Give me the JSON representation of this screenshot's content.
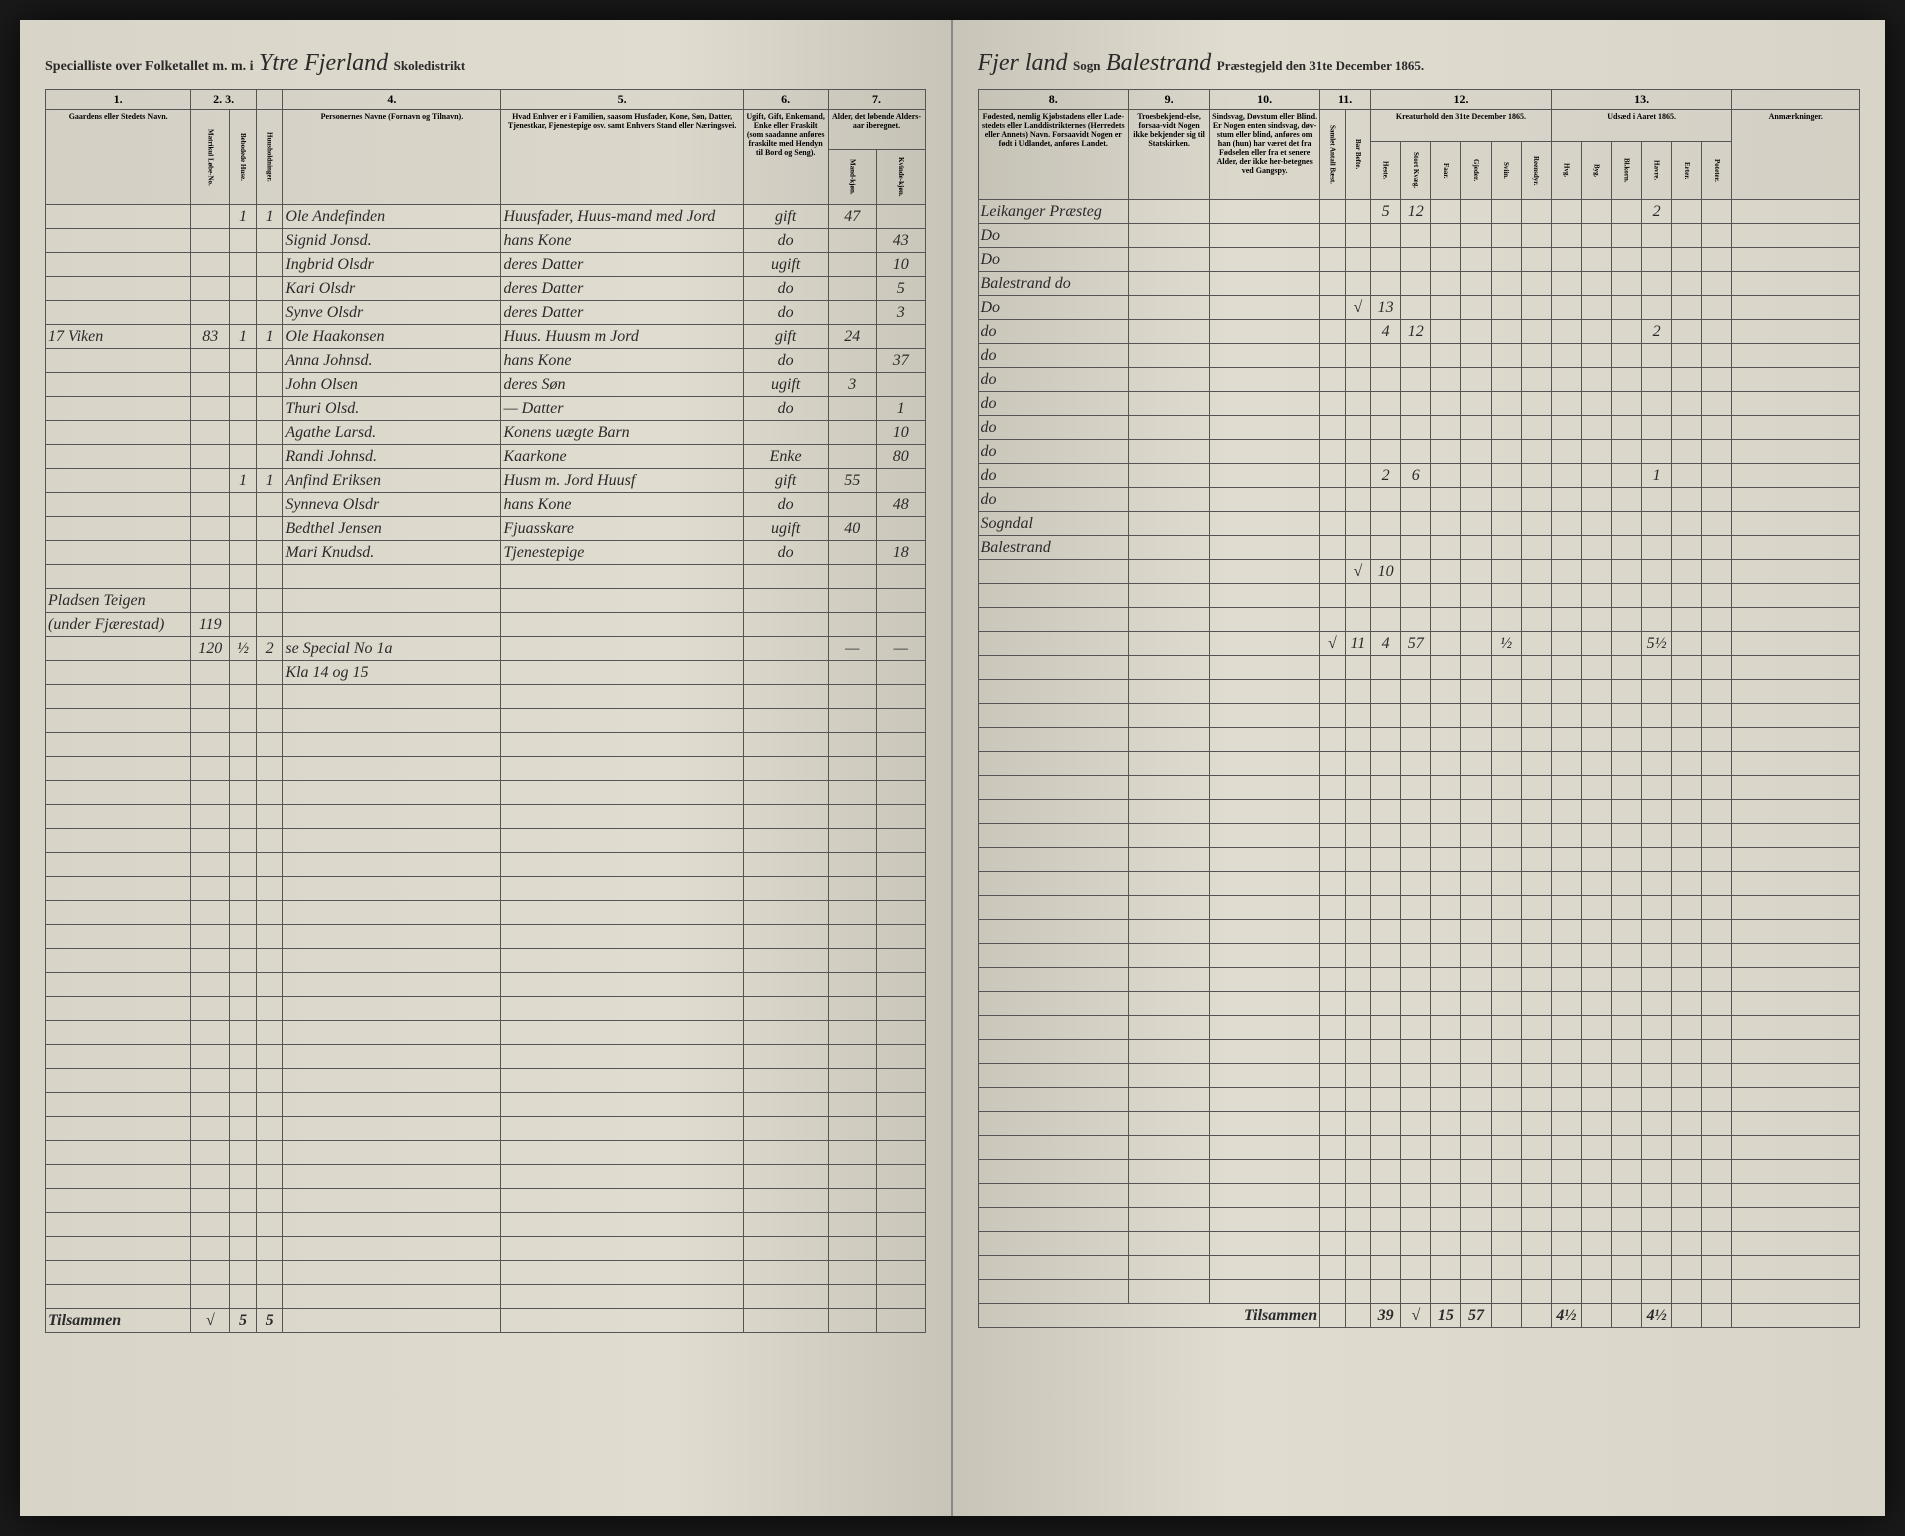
{
  "header_left": {
    "printed1": "Specialliste over Folketallet m. m. i",
    "script1": "Ytre Fjerland",
    "printed2": "Skoledistrikt"
  },
  "header_right": {
    "script1": "Fjer land",
    "printed1": "Sogn",
    "script2": "Balestrand",
    "printed2": "Præstegjeld den 31te December 1865."
  },
  "left_cols": {
    "c1": "1.",
    "c2": "2.",
    "c3": "3.",
    "c4": "4.",
    "c5": "5.",
    "c6": "6.",
    "c7": "7.",
    "h1": "Gaardens eller Stedets Navn.",
    "h2a": "Matrikul Løbe-No.",
    "h2b": "Bebodede Huse.",
    "h3": "Huusholdninger.",
    "h4": "Personernes Navne (Fornavn og Tilnavn).",
    "h5": "Hvad Enhver er i Familien, saasom Husfader, Kone, Søn, Datter, Tjenestkar, Fjenestepige osv. samt Enhvers Stand eller Næringsvei.",
    "h6": "Ugift, Gift, Enkemand, Enke eller Fraskilt (som saadanne anføres fraskilte med Hendyn til Bord og Seng).",
    "h7": "Alder, det løbende Alders-aar iberegnet.",
    "h7a": "Mand-kjøn.",
    "h7b": "Kvinde-kjøn."
  },
  "right_cols": {
    "c8": "8.",
    "c9": "9.",
    "c10": "10.",
    "c11": "11.",
    "c12": "12.",
    "c13": "13.",
    "h8": "Fødested, nemlig Kjøbstadens eller Lade-stedets eller Landdistrikternes (Herredets eller Annets) Navn. Forsaavidt Nogen er født i Udlandet, anføres Landet.",
    "h9": "Troesbekjend-else, forsaa-vidt Nogen ikke bekjender sig til Statskirken.",
    "h10": "Sindsvag, Døvstum eller Blind. Er Nogen enten sindsvag, døv-stum eller blind, anføres om han (hun) har været det fra Fødselen eller fra et senere Alder, der ikke her-betegnes ved Gangspy.",
    "h11a": "Samlet Antall Bæst.",
    "h11b": "Bar Befte.",
    "h12": "Kreaturhold den 31te December 1865.",
    "h12a": "Heste.",
    "h12b": "Stort Kvæg.",
    "h12c": "Faar.",
    "h12d": "Gjeder.",
    "h12e": "Sviin.",
    "h12f": "Reensdyr.",
    "h13": "Udsæd i Aaret 1865.",
    "h13a": "Hvg.",
    "h13b": "Byg.",
    "h13c": "Bl.korn.",
    "h13d": "Havre.",
    "h13e": "Erter.",
    "h13f": "Poteter.",
    "h14": "Anmærkninger."
  },
  "rows": [
    {
      "c1": "",
      "c2": "",
      "c3": "1",
      "c3b": "1",
      "c4": "Ole Andefinden",
      "c5": "Huusfader, Huus-mand med Jord",
      "c6": "gift",
      "c7a": "47",
      "c7b": "",
      "c8": "Leikanger Præsteg",
      "c12": [
        "",
        "",
        "5",
        "12",
        "",
        "",
        "",
        "",
        "",
        "",
        "",
        "2"
      ]
    },
    {
      "c1": "",
      "c2": "",
      "c3": "",
      "c3b": "",
      "c4": "Signid Jonsd.",
      "c5": "hans Kone",
      "c6": "do",
      "c7a": "",
      "c7b": "43",
      "c8": "Do",
      "c12": [
        "",
        "",
        "",
        "",
        "",
        "",
        "",
        "",
        "",
        "",
        "",
        ""
      ]
    },
    {
      "c1": "",
      "c2": "",
      "c3": "",
      "c3b": "",
      "c4": "Ingbrid Olsdr",
      "c5": "deres Datter",
      "c6": "ugift",
      "c7a": "",
      "c7b": "10",
      "c8": "Do",
      "c12": [
        "",
        "",
        "",
        "",
        "",
        "",
        "",
        "",
        "",
        "",
        "",
        ""
      ]
    },
    {
      "c1": "",
      "c2": "",
      "c3": "",
      "c3b": "",
      "c4": "Kari Olsdr",
      "c5": "deres Datter",
      "c6": "do",
      "c7a": "",
      "c7b": "5",
      "c8": "Balestrand do",
      "c12": [
        "",
        "",
        "",
        "",
        "",
        "",
        "",
        "",
        "",
        "",
        "",
        ""
      ]
    },
    {
      "c1": "",
      "c2": "",
      "c3": "",
      "c3b": "",
      "c4": "Synve Olsdr",
      "c5": "deres Datter",
      "c6": "do",
      "c7a": "",
      "c7b": "3",
      "c8": "Do",
      "c12": [
        "",
        "√",
        "13",
        "",
        "",
        "",
        "",
        "",
        "",
        "",
        "",
        ""
      ]
    },
    {
      "c1": "17 Viken",
      "c2": "83",
      "c3": "1",
      "c3b": "1",
      "c4": "Ole Haakonsen",
      "c5": "Huus. Huusm m Jord",
      "c6": "gift",
      "c7a": "24",
      "c7b": "",
      "c8": "do",
      "c12": [
        "",
        "",
        "4",
        "12",
        "",
        "",
        "",
        "",
        "",
        "",
        "",
        "2"
      ]
    },
    {
      "c1": "",
      "c2": "",
      "c3": "",
      "c3b": "",
      "c4": "Anna Johnsd.",
      "c5": "hans Kone",
      "c6": "do",
      "c7a": "",
      "c7b": "37",
      "c8": "do",
      "c12": [
        "",
        "",
        "",
        "",
        "",
        "",
        "",
        "",
        "",
        "",
        "",
        ""
      ]
    },
    {
      "c1": "",
      "c2": "",
      "c3": "",
      "c3b": "",
      "c4": "John Olsen",
      "c5": "deres Søn",
      "c6": "ugift",
      "c7a": "3",
      "c7b": "",
      "c8": "do",
      "c12": [
        "",
        "",
        "",
        "",
        "",
        "",
        "",
        "",
        "",
        "",
        "",
        ""
      ]
    },
    {
      "c1": "",
      "c2": "",
      "c3": "",
      "c3b": "",
      "c4": "Thuri Olsd.",
      "c5": "— Datter",
      "c6": "do",
      "c7a": "",
      "c7b": "1",
      "c8": "do",
      "c12": [
        "",
        "",
        "",
        "",
        "",
        "",
        "",
        "",
        "",
        "",
        "",
        ""
      ]
    },
    {
      "c1": "",
      "c2": "",
      "c3": "",
      "c3b": "",
      "c4": "Agathe Larsd.",
      "c5": "Konens uægte Barn",
      "c6": "",
      "c7a": "",
      "c7b": "10",
      "c8": "do",
      "c12": [
        "",
        "",
        "",
        "",
        "",
        "",
        "",
        "",
        "",
        "",
        "",
        ""
      ]
    },
    {
      "c1": "",
      "c2": "",
      "c3": "",
      "c3b": "",
      "c4": "Randi Johnsd.",
      "c5": "Kaarkone",
      "c6": "Enke",
      "c7a": "",
      "c7b": "80",
      "c8": "do",
      "c12": [
        "",
        "",
        "",
        "",
        "",
        "",
        "",
        "",
        "",
        "",
        "",
        ""
      ]
    },
    {
      "c1": "",
      "c2": "",
      "c3": "1",
      "c3b": "1",
      "c4": "Anfind Eriksen",
      "c5": "Husm m. Jord Huusf",
      "c6": "gift",
      "c7a": "55",
      "c7b": "",
      "c8": "do",
      "c12": [
        "",
        "",
        "2",
        "6",
        "",
        "",
        "",
        "",
        "",
        "",
        "",
        "1"
      ]
    },
    {
      "c1": "",
      "c2": "",
      "c3": "",
      "c3b": "",
      "c4": "Synneva Olsdr",
      "c5": "hans Kone",
      "c6": "do",
      "c7a": "",
      "c7b": "48",
      "c8": "do",
      "c12": [
        "",
        "",
        "",
        "",
        "",
        "",
        "",
        "",
        "",
        "",
        "",
        ""
      ]
    },
    {
      "c1": "",
      "c2": "",
      "c3": "",
      "c3b": "",
      "c4": "Bedthel Jensen",
      "c5": "Fjuasskare",
      "c6": "ugift",
      "c7a": "40",
      "c7b": "",
      "c8": "Sogndal",
      "c12": [
        "",
        "",
        "",
        "",
        "",
        "",
        "",
        "",
        "",
        "",
        "",
        ""
      ]
    },
    {
      "c1": "",
      "c2": "",
      "c3": "",
      "c3b": "",
      "c4": "Mari Knudsd.",
      "c5": "Tjenestepige",
      "c6": "do",
      "c7a": "",
      "c7b": "18",
      "c8": "Balestrand",
      "c12": [
        "",
        "",
        "",
        "",
        "",
        "",
        "",
        "",
        "",
        "",
        "",
        ""
      ]
    },
    {
      "c1": "",
      "c2": "",
      "c3": "",
      "c3b": "",
      "c4": "",
      "c5": "",
      "c6": "",
      "c7a": "",
      "c7b": "",
      "c8": "",
      "c12": [
        "",
        "√",
        "10",
        "",
        "",
        "",
        "",
        "",
        "",
        "",
        "",
        ""
      ]
    },
    {
      "c1": "Pladsen Teigen",
      "c2": "",
      "c3": "",
      "c3b": "",
      "c4": "",
      "c5": "",
      "c6": "",
      "c7a": "",
      "c7b": "",
      "c8": "",
      "c12": [
        "",
        "",
        "",
        "",
        "",
        "",
        "",
        "",
        "",
        "",
        "",
        ""
      ]
    },
    {
      "c1": "(under Fjærestad)",
      "c2": "119",
      "c3": "",
      "c3b": "",
      "c4": "",
      "c5": "",
      "c6": "",
      "c7a": "",
      "c7b": "",
      "c8": "",
      "c12": [
        "",
        "",
        "",
        "",
        "",
        "",
        "",
        "",
        "",
        "",
        "",
        ""
      ]
    },
    {
      "c1": "",
      "c2": "120",
      "c3": "½",
      "c3b": "2",
      "c4": "se Special No 1a",
      "c5": "",
      "c6": "",
      "c7a": "—",
      "c7b": "—",
      "c8": "",
      "c12": [
        "√",
        "11",
        "4",
        "57",
        "",
        "",
        "½",
        "",
        "",
        "",
        "",
        "5½"
      ]
    },
    {
      "c1": "",
      "c2": "",
      "c3": "",
      "c3b": "",
      "c4": "Kla 14 og 15",
      "c5": "",
      "c6": "",
      "c7a": "",
      "c7b": "",
      "c8": "",
      "c12": [
        "",
        "",
        "",
        "",
        "",
        "",
        "",
        "",
        "",
        "",
        "",
        ""
      ]
    }
  ],
  "empty_rows": 26,
  "footer_left": {
    "label": "Tilsammen",
    "v3": "√",
    "v3b": "5",
    "v3c": "5"
  },
  "footer_right": {
    "label": "Tilsammen",
    "v": [
      "",
      "",
      "39",
      "√",
      "15",
      "57",
      "",
      "",
      "4½",
      "",
      "",
      "4½"
    ]
  },
  "colors": {
    "paper": "#ddd8cc",
    "ink": "#2a2a2a",
    "line": "#555"
  }
}
